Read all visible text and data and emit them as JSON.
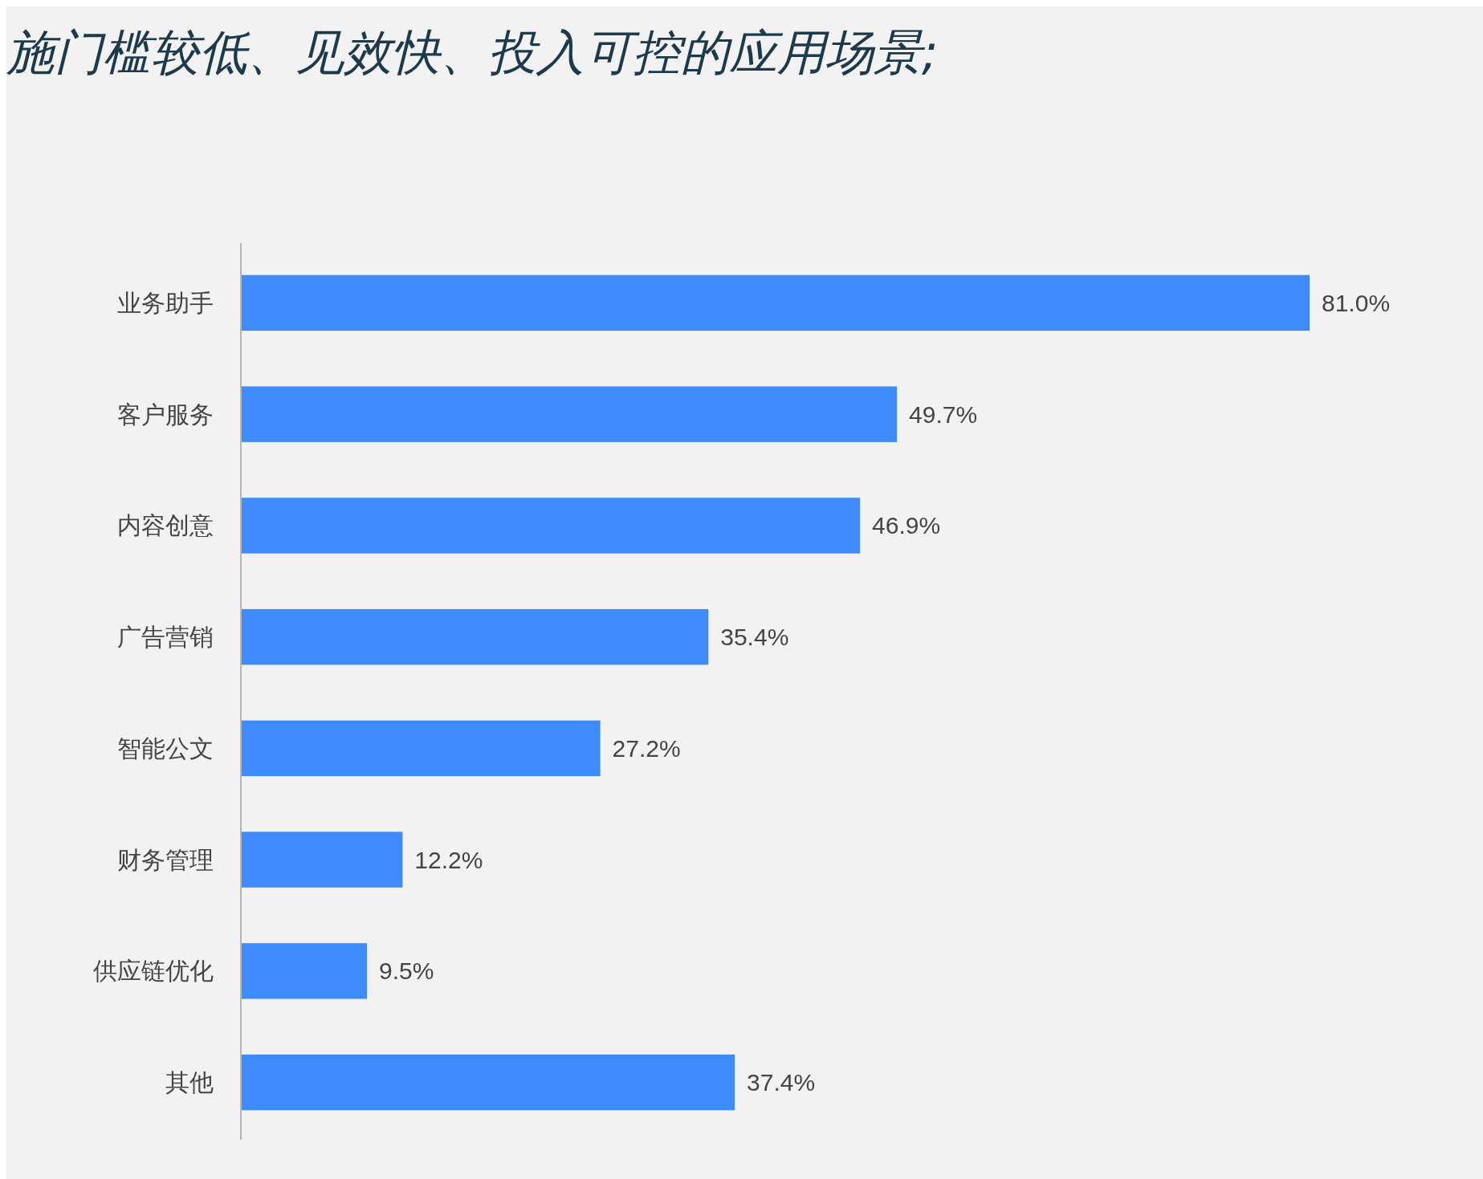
{
  "chart_data": {
    "type": "bar",
    "orientation": "horizontal",
    "title": "施门槛较低、见效快、投入可控的应用场景;",
    "categories": [
      "业务助手",
      "客户服务",
      "内容创意",
      "广告营销",
      "智能公文",
      "财务管理",
      "供应链优化",
      "其他"
    ],
    "values": [
      81.0,
      49.7,
      46.9,
      35.4,
      27.2,
      12.2,
      9.5,
      37.4
    ],
    "value_labels": [
      "81.0%",
      "49.7%",
      "46.9%",
      "35.4%",
      "27.2%",
      "12.2%",
      "9.5%",
      "37.4%"
    ],
    "color": "#3d8bfd"
  }
}
